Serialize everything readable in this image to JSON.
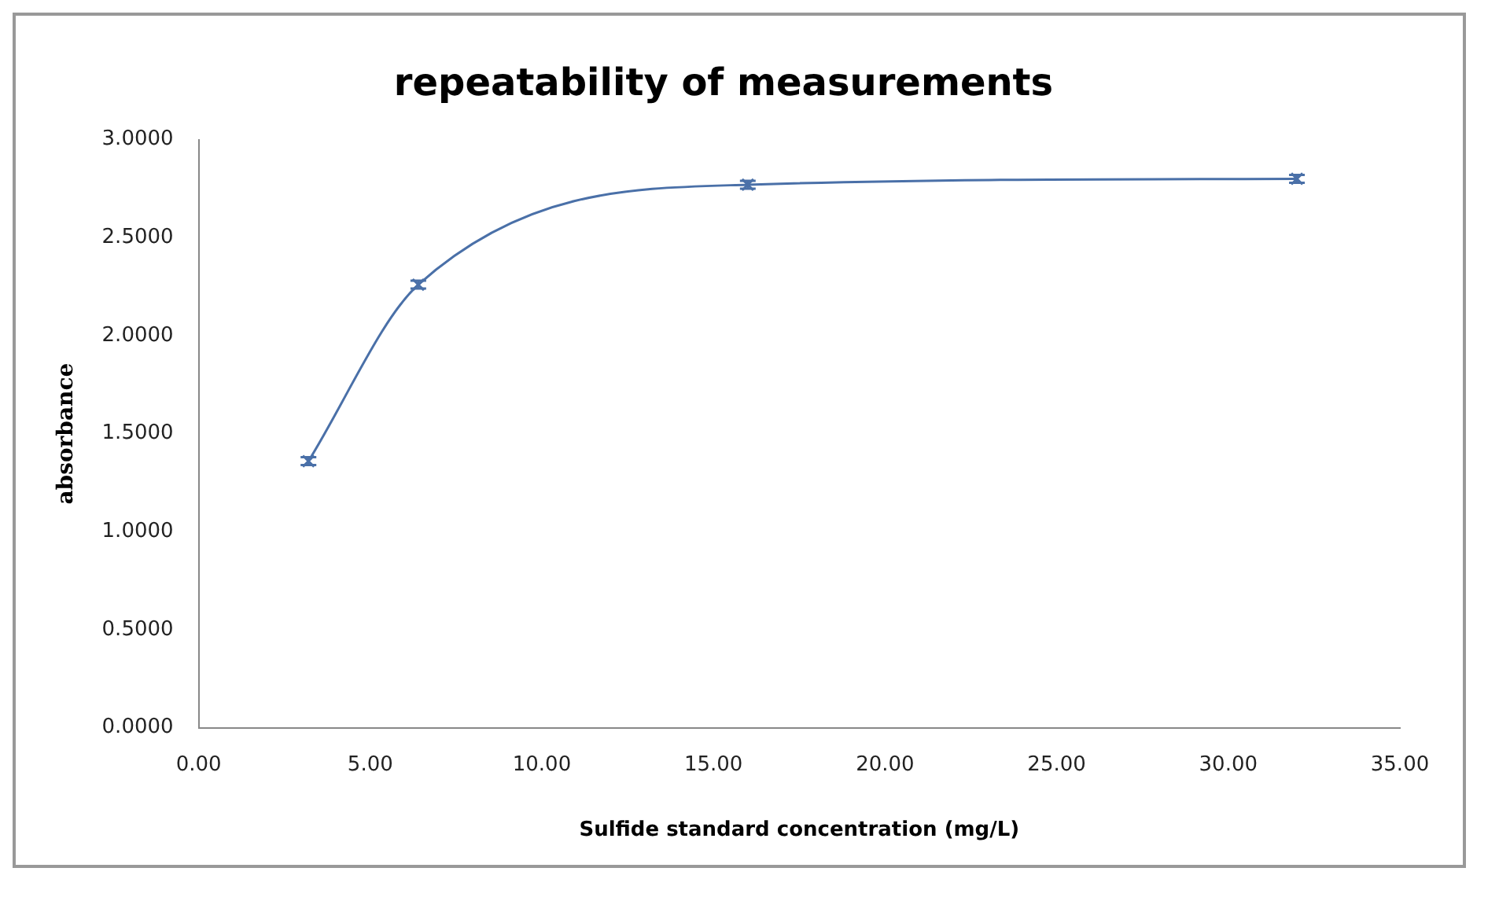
{
  "chart_data": {
    "type": "line",
    "title": "repeatability of measurements",
    "xlabel": "Sulfide standard concentration (mg/L)",
    "ylabel": "absorbance",
    "x": [
      3.2,
      6.4,
      16,
      32
    ],
    "series": [
      {
        "color": "#4a70a8",
        "values": [
          1.36,
          2.26,
          2.77,
          2.8
        ],
        "errors": [
          0.02,
          0.02,
          0.02,
          0.02
        ]
      }
    ],
    "xlim": [
      0,
      35
    ],
    "xticks": [
      {
        "value": 0,
        "label": "0.00"
      },
      {
        "value": 5,
        "label": "5.00"
      },
      {
        "value": 10,
        "label": "10.00"
      },
      {
        "value": 15,
        "label": "15.00"
      },
      {
        "value": 20,
        "label": "20.00"
      },
      {
        "value": 25,
        "label": "25.00"
      },
      {
        "value": 30,
        "label": "30.00"
      },
      {
        "value": 35,
        "label": "35.00"
      }
    ],
    "ylim": [
      0,
      3
    ],
    "yticks": [
      {
        "value": 0,
        "label": "0.0000"
      },
      {
        "value": 0.5,
        "label": "0.5000"
      },
      {
        "value": 1,
        "label": "1.0000"
      },
      {
        "value": 1.5,
        "label": "1.5000"
      },
      {
        "value": 2,
        "label": "2.0000"
      },
      {
        "value": 2.5,
        "label": "2.5000"
      },
      {
        "value": 3,
        "label": "3.0000"
      }
    ],
    "grid": false,
    "legend": false,
    "marker": "cross",
    "line_style": "solid"
  }
}
